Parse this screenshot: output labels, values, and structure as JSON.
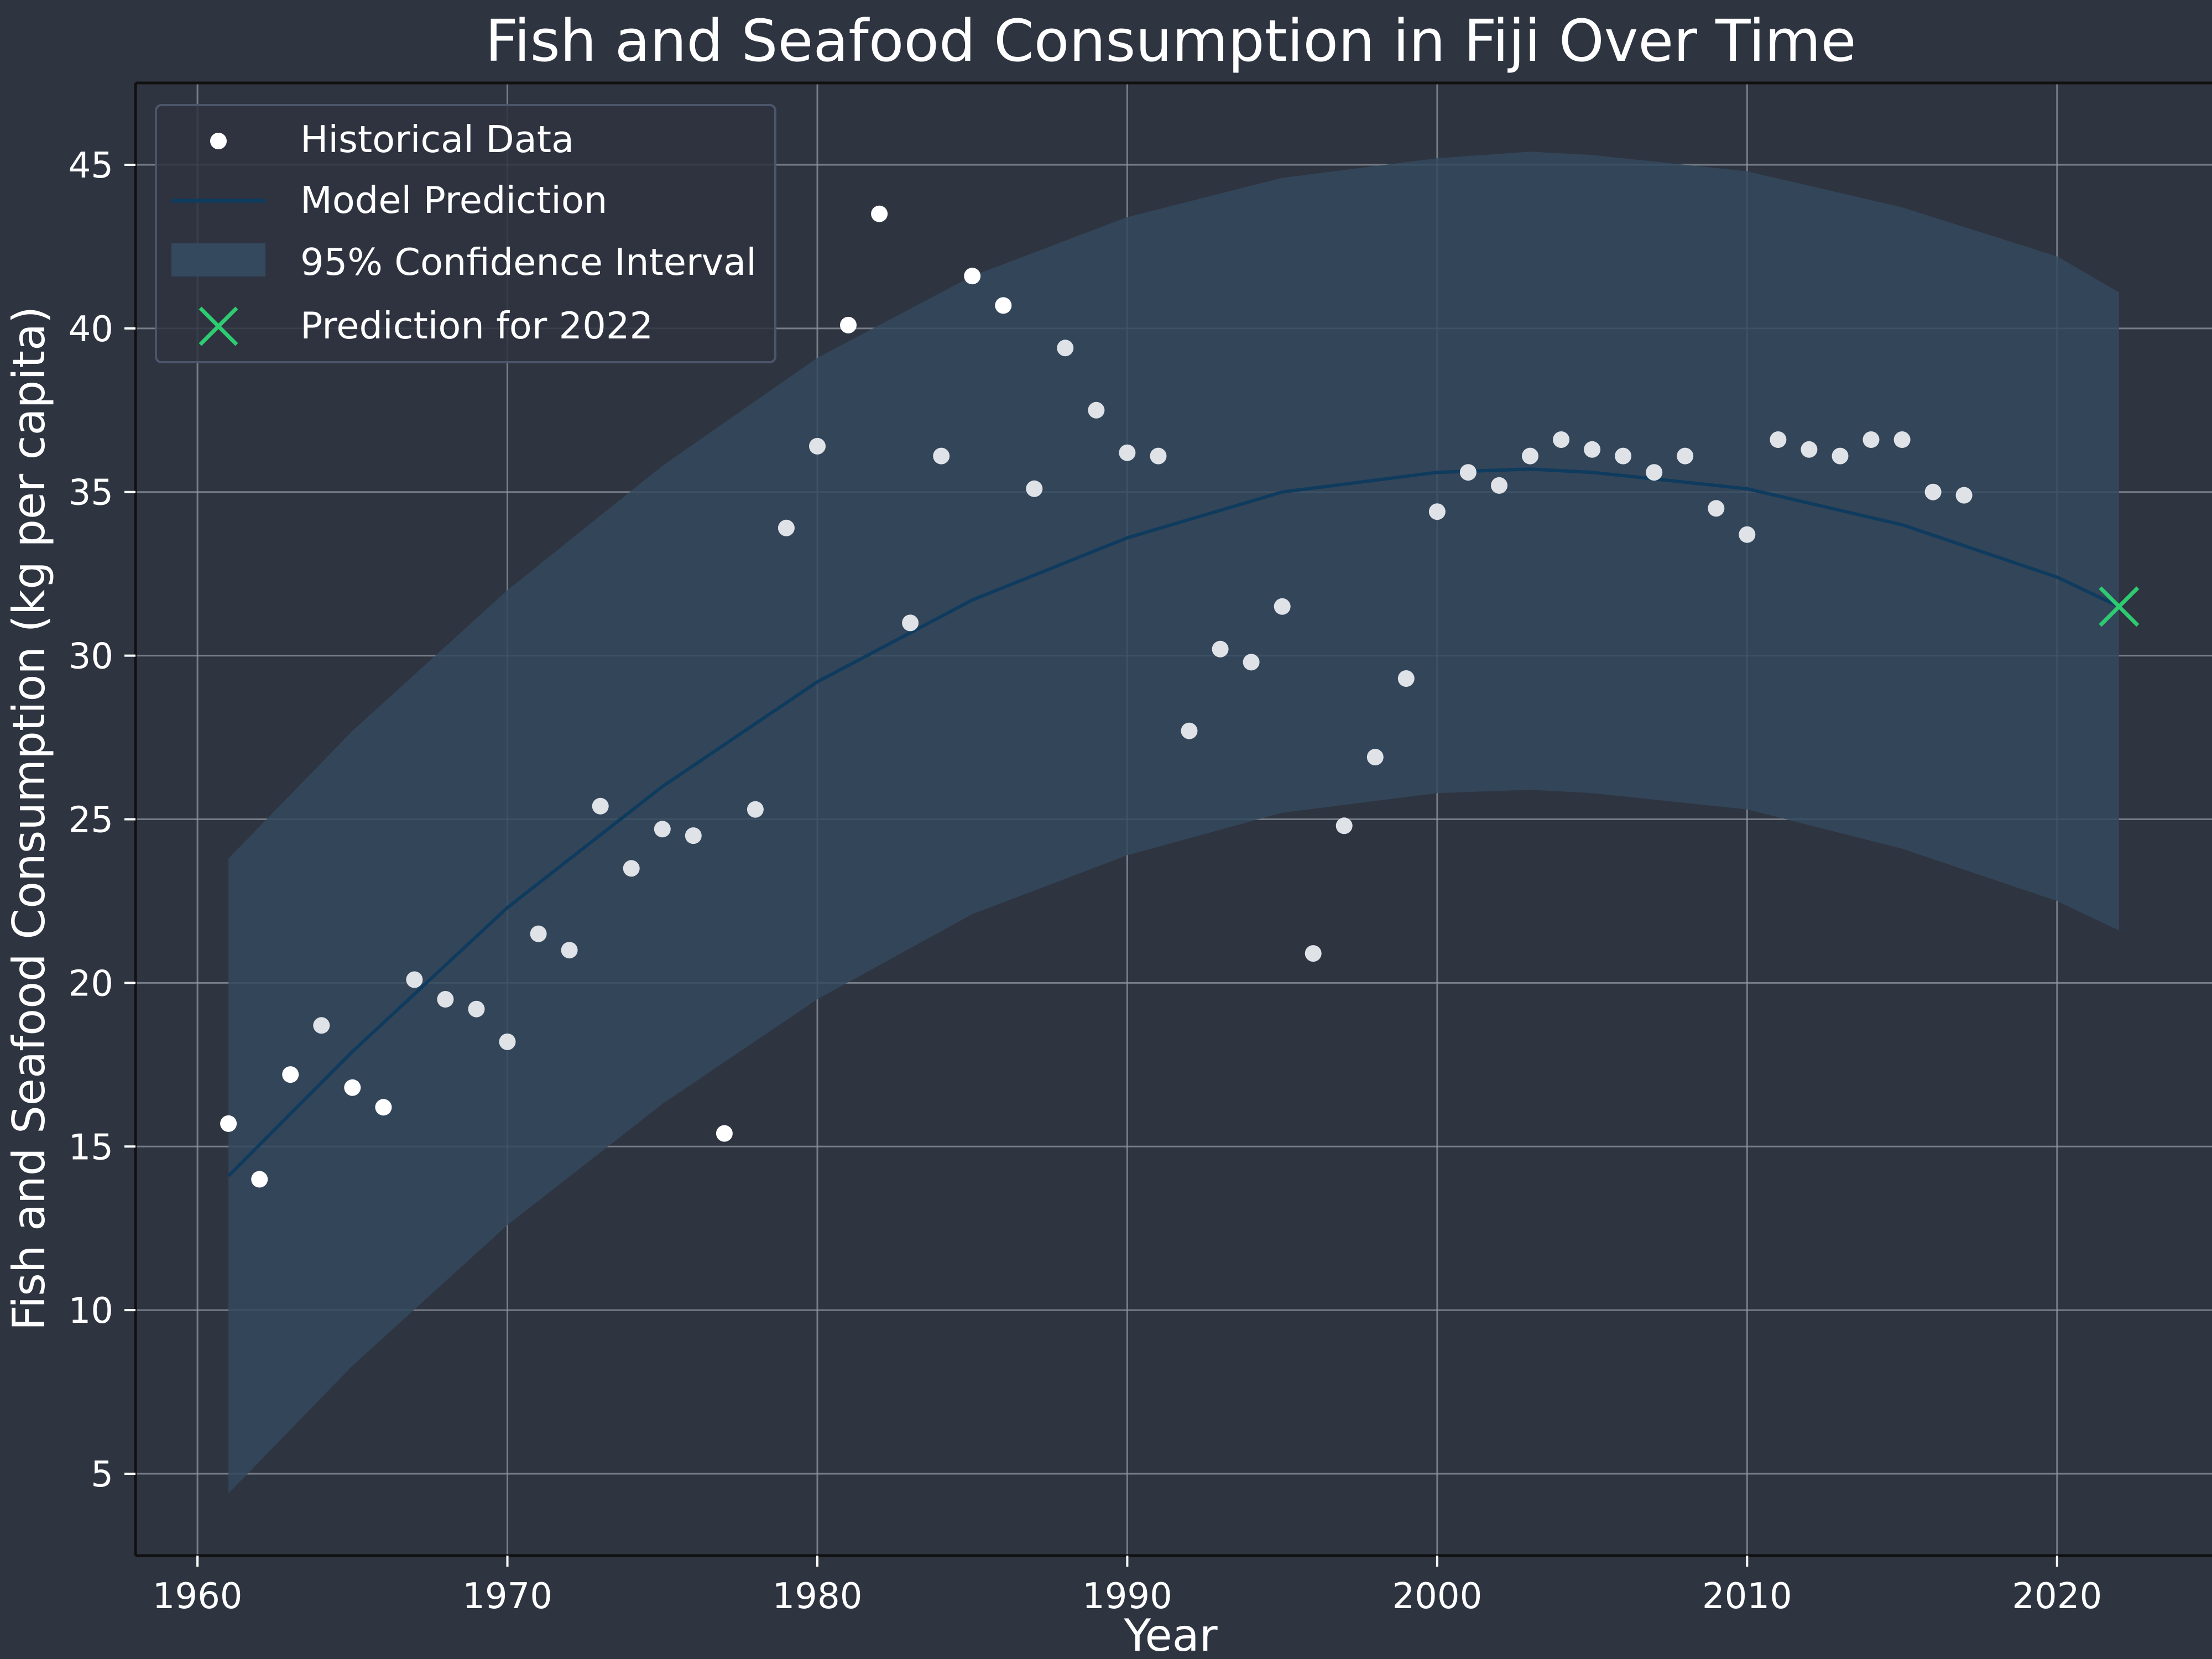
{
  "chart_data": {
    "type": "scatter",
    "title": "Fish and Seafood Consumption in Fiji Over Time",
    "xlabel": "Year",
    "ylabel": "Fish and Seafood Consumption (kg per capita)",
    "xlim": [
      1958,
      2025
    ],
    "ylim": [
      2.5,
      47.5
    ],
    "xticks": [
      1960,
      1970,
      1980,
      1990,
      2000,
      2010,
      2020
    ],
    "yticks": [
      5,
      10,
      15,
      20,
      25,
      30,
      35,
      40,
      45
    ],
    "grid": true,
    "legend_position": "top-left",
    "legend": {
      "historical": "Historical Data",
      "model": "Model Prediction",
      "ci": "95% Confidence Interval",
      "prediction": "Prediction for 2022"
    },
    "series": [
      {
        "name": "Historical Data",
        "kind": "scatter",
        "color": "#ffffff",
        "x": [
          1961,
          1962,
          1963,
          1964,
          1965,
          1966,
          1967,
          1968,
          1969,
          1970,
          1971,
          1972,
          1973,
          1974,
          1975,
          1976,
          1977,
          1978,
          1979,
          1980,
          1981,
          1982,
          1983,
          1984,
          1985,
          1986,
          1987,
          1988,
          1989,
          1990,
          1991,
          1992,
          1993,
          1994,
          1995,
          1996,
          1997,
          1998,
          1999,
          2000,
          2001,
          2002,
          2003,
          2004,
          2005,
          2006,
          2007,
          2008,
          2009,
          2010,
          2011,
          2012,
          2013,
          2014,
          2015,
          2016,
          2017
        ],
        "y": [
          15.7,
          14.0,
          17.2,
          18.7,
          16.8,
          16.2,
          20.1,
          19.5,
          19.2,
          18.2,
          21.5,
          21.0,
          25.4,
          23.5,
          24.7,
          24.5,
          15.4,
          25.3,
          33.9,
          36.4,
          40.1,
          43.5,
          31.0,
          36.1,
          41.6,
          40.7,
          35.1,
          39.4,
          37.5,
          36.2,
          36.1,
          27.7,
          30.2,
          29.8,
          31.5,
          20.9,
          24.8,
          26.9,
          29.3,
          34.4,
          35.6,
          35.2,
          36.1,
          36.6,
          36.3,
          36.1,
          35.6,
          36.1,
          34.5,
          33.7,
          36.6,
          36.3,
          36.1,
          36.6,
          36.6,
          35.0,
          34.9
        ]
      },
      {
        "name": "Model Prediction",
        "kind": "line",
        "color": "#0e3b5e",
        "x": [
          1961,
          1965,
          1970,
          1975,
          1980,
          1985,
          1990,
          1995,
          2000,
          2003,
          2005,
          2010,
          2015,
          2020,
          2022
        ],
        "y": [
          14.1,
          17.9,
          22.3,
          26.0,
          29.2,
          31.7,
          33.6,
          35.0,
          35.6,
          35.7,
          35.6,
          35.1,
          34.0,
          32.4,
          31.5
        ]
      },
      {
        "name": "95% Confidence Interval",
        "kind": "band",
        "color": "#34495e",
        "x": [
          1961,
          1965,
          1970,
          1975,
          1980,
          1985,
          1990,
          1995,
          2000,
          2003,
          2005,
          2010,
          2015,
          2020,
          2022
        ],
        "lower": [
          4.4,
          8.3,
          12.6,
          16.3,
          19.5,
          22.1,
          23.9,
          25.2,
          25.8,
          25.9,
          25.8,
          25.3,
          24.1,
          22.5,
          21.6
        ],
        "upper": [
          23.8,
          27.7,
          32.0,
          35.8,
          39.1,
          41.6,
          43.4,
          44.6,
          45.2,
          45.4,
          45.3,
          44.8,
          43.7,
          42.2,
          41.1
        ]
      },
      {
        "name": "Prediction for 2022",
        "kind": "marker",
        "color": "#2ecc71",
        "x": [
          2022
        ],
        "y": [
          31.5
        ]
      }
    ]
  }
}
